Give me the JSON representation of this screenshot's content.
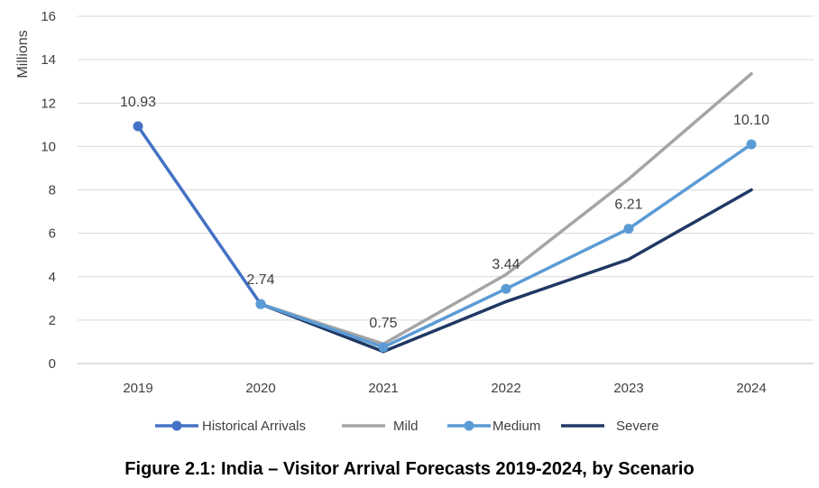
{
  "chart_data": {
    "type": "line",
    "title": "",
    "ylabel": "Millions",
    "xlabel": "",
    "categories": [
      "2019",
      "2020",
      "2021",
      "2022",
      "2023",
      "2024"
    ],
    "ylim": [
      0,
      16
    ],
    "yticks": [
      0,
      2,
      4,
      6,
      8,
      10,
      12,
      14,
      16
    ],
    "grid": true,
    "legend_position": "bottom",
    "series": [
      {
        "name": "Historical Arrivals",
        "color": "#4472C4",
        "markers": true,
        "values": [
          10.93,
          2.74,
          null,
          null,
          null,
          null
        ]
      },
      {
        "name": "Mild",
        "color": "#A5A5A5",
        "markers": false,
        "values": [
          null,
          2.74,
          0.9,
          4.1,
          8.5,
          13.35
        ]
      },
      {
        "name": "Medium",
        "color": "#5B9BD5",
        "markers": true,
        "values": [
          null,
          2.74,
          0.75,
          3.44,
          6.21,
          10.1
        ]
      },
      {
        "name": "Severe",
        "color": "#203864",
        "markers": false,
        "values": [
          null,
          2.74,
          0.55,
          2.85,
          4.8,
          8.0
        ]
      }
    ],
    "data_labels": [
      {
        "category": "2019",
        "value": 10.93,
        "text": "10.93"
      },
      {
        "category": "2020",
        "value": 2.74,
        "text": "2.74"
      },
      {
        "category": "2021",
        "value": 0.75,
        "text": "0.75"
      },
      {
        "category": "2022",
        "value": 3.44,
        "text": "3.44"
      },
      {
        "category": "2023",
        "value": 6.21,
        "text": "6.21"
      },
      {
        "category": "2024",
        "value": 10.1,
        "text": "10.10"
      }
    ]
  },
  "caption": "Figure 2.1: India – Visitor Arrival Forecasts 2019-2024, by Scenario"
}
